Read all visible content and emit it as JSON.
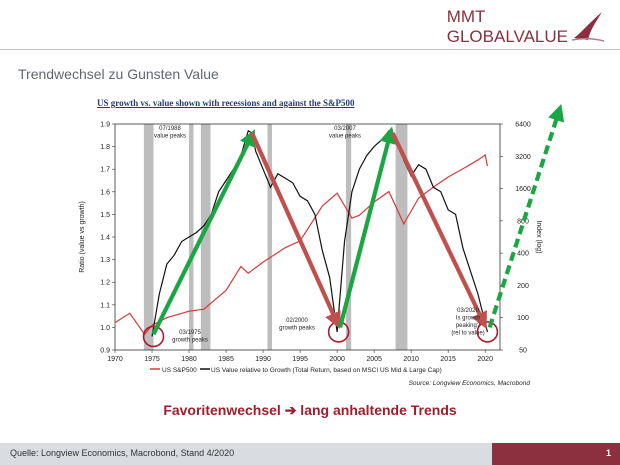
{
  "brand": {
    "line1": "MMT",
    "line2": "GLOBALVALUE"
  },
  "slide": {
    "title": "Trendwechsel zu Gunsten Value"
  },
  "headline": "Favoritenwechsel ➔ lang anhaltende Trends",
  "footer": {
    "source": "Quelle: Longview Economics, Macrobond, Stand 4/2020",
    "page": "1"
  },
  "colors": {
    "brand": "#8c2f3f",
    "growth_line": "#111111",
    "sp500_line": "#d43a3a",
    "arrow_red": "#c0504d",
    "arrow_green": "#1aa642",
    "recession": "#bdbdbd"
  },
  "chart_data": {
    "type": "line",
    "title": "US growth vs. value shown with recessions and against the S&P500",
    "ylabel_left": "Ratio (value vs growth)",
    "ylabel_right": "Index (log)",
    "xlim": [
      1970,
      2022
    ],
    "ylim_left": [
      0.9,
      1.9
    ],
    "ylim_right_log": [
      50,
      6400
    ],
    "x_ticks": [
      "1970",
      "1975",
      "1980",
      "1985",
      "1990",
      "1995",
      "2000",
      "2005",
      "2010",
      "2015",
      "2020"
    ],
    "y_ticks_left": [
      "0.9",
      "1.0",
      "1.1",
      "1.2",
      "1.3",
      "1.4",
      "1.5",
      "1.6",
      "1.7",
      "1.8",
      "1.9"
    ],
    "y_ticks_right": [
      "50",
      "100",
      "200",
      "400",
      "800",
      "1600",
      "3200",
      "6400"
    ],
    "recessions": [
      [
        1973.9,
        1975.2
      ],
      [
        1980.0,
        1980.6
      ],
      [
        1981.6,
        1982.9
      ],
      [
        1990.6,
        1991.2
      ],
      [
        2001.2,
        2001.9
      ],
      [
        2007.9,
        2009.5
      ]
    ],
    "series": [
      {
        "name": "US S&P500",
        "axis": "right",
        "x": [
          1970,
          1972,
          1974,
          1975,
          1977,
          1980,
          1982,
          1985,
          1987,
          1988,
          1990,
          1993,
          1995,
          1998,
          2000,
          2002,
          2003,
          2005,
          2007,
          2009,
          2011,
          2013,
          2015,
          2017,
          2019,
          2020,
          2020.3
        ],
        "values": [
          90,
          110,
          70,
          85,
          100,
          115,
          120,
          180,
          300,
          260,
          330,
          450,
          520,
          1100,
          1450,
          850,
          900,
          1200,
          1500,
          750,
          1300,
          1650,
          2050,
          2450,
          2950,
          3300,
          2600
        ]
      },
      {
        "name": "US Value relative to Growth (Total Return, based on MSCI US Mid & Large Cap)",
        "axis": "left",
        "x": [
          1975,
          1976,
          1977,
          1978,
          1979,
          1980,
          1981,
          1982,
          1983,
          1984,
          1985,
          1986,
          1987,
          1988,
          1988.5,
          1989,
          1990,
          1991,
          1992,
          1993,
          1994,
          1995,
          1996,
          1997,
          1998,
          1999,
          2000,
          2001,
          2002,
          2003,
          2004,
          2005,
          2006,
          2007,
          2007.5,
          2008,
          2009,
          2010,
          2011,
          2012,
          2013,
          2014,
          2015,
          2016,
          2017,
          2018,
          2019,
          2020,
          2020.3
        ],
        "values": [
          0.96,
          1.15,
          1.28,
          1.32,
          1.38,
          1.4,
          1.42,
          1.45,
          1.5,
          1.6,
          1.65,
          1.7,
          1.76,
          1.87,
          1.86,
          1.78,
          1.7,
          1.62,
          1.68,
          1.66,
          1.64,
          1.58,
          1.56,
          1.5,
          1.34,
          1.22,
          0.98,
          1.38,
          1.6,
          1.7,
          1.76,
          1.8,
          1.83,
          1.87,
          1.85,
          1.84,
          1.74,
          1.67,
          1.72,
          1.7,
          1.62,
          1.6,
          1.52,
          1.5,
          1.35,
          1.25,
          1.15,
          1.02,
          0.98
        ]
      }
    ],
    "annotations": [
      {
        "text": [
          "07/1988",
          "value peaks"
        ]
      },
      {
        "text": [
          "03/2007",
          "value peaks"
        ]
      },
      {
        "text": [
          "02/2000",
          "growth peaks"
        ]
      },
      {
        "text": [
          "03/1975",
          "growth peaks"
        ]
      },
      {
        "text": [
          "03/2020",
          "Is growth",
          "peaking?",
          "(rel to value)"
        ]
      }
    ],
    "legend": [
      "US S&P500",
      "US Value relative to Growth (Total Return, based on MSCI US Mid & Large Cap)"
    ],
    "source": "Source: Longview Economics, Macrobond"
  }
}
